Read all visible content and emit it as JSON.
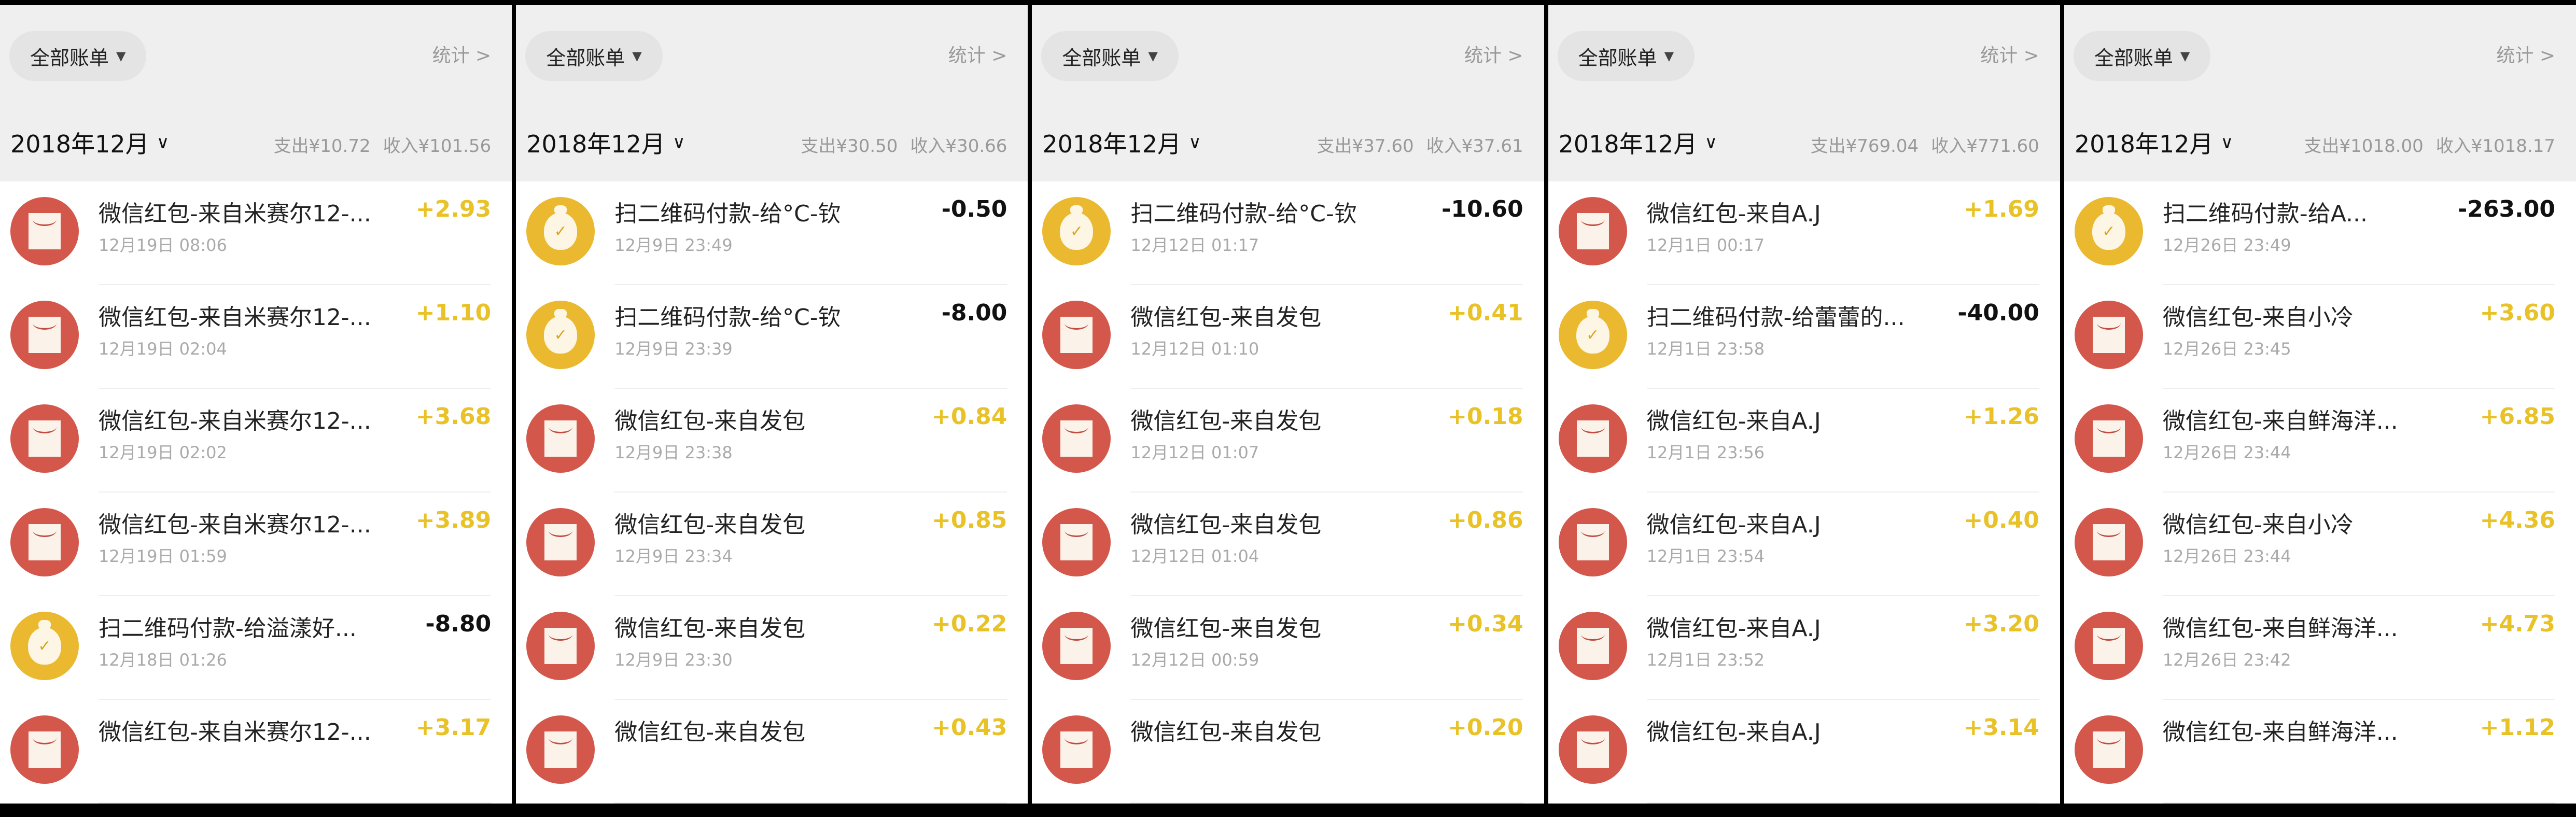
{
  "header": {
    "filter_label": "全部账单",
    "stats_label": "统计 >",
    "month_label": "2018年12月"
  },
  "colors": {
    "red_packet": "#d4574b",
    "payment": "#eab930",
    "income_amount": "#e9c227"
  },
  "panels": [
    {
      "expense": "支出¥10.72",
      "income": "收入¥101.56",
      "items": [
        {
          "type": "red",
          "title": "微信红包-来自米赛尔12-...",
          "date": "12月19日 08:06",
          "amount": "+2.93"
        },
        {
          "type": "red",
          "title": "微信红包-来自米赛尔12-...",
          "date": "12月19日 02:04",
          "amount": "+1.10"
        },
        {
          "type": "red",
          "title": "微信红包-来自米赛尔12-...",
          "date": "12月19日 02:02",
          "amount": "+3.68"
        },
        {
          "type": "red",
          "title": "微信红包-来自米赛尔12-...",
          "date": "12月19日 01:59",
          "amount": "+3.89"
        },
        {
          "type": "pay",
          "title": "扫二维码付款-给溢漾好...",
          "date": "12月18日 01:26",
          "amount": "-8.80"
        },
        {
          "type": "red",
          "title": "微信红包-来自米赛尔12-...",
          "date": "",
          "amount": "+3.17"
        }
      ]
    },
    {
      "expense": "支出¥30.50",
      "income": "收入¥30.66",
      "items": [
        {
          "type": "pay",
          "title": "扫二维码付款-给°C-钦",
          "date": "12月9日 23:49",
          "amount": "-0.50"
        },
        {
          "type": "pay",
          "title": "扫二维码付款-给°C-钦",
          "date": "12月9日 23:39",
          "amount": "-8.00"
        },
        {
          "type": "red",
          "title": "微信红包-来自发包",
          "date": "12月9日 23:38",
          "amount": "+0.84"
        },
        {
          "type": "red",
          "title": "微信红包-来自发包",
          "date": "12月9日 23:34",
          "amount": "+0.85"
        },
        {
          "type": "red",
          "title": "微信红包-来自发包",
          "date": "12月9日 23:30",
          "amount": "+0.22"
        },
        {
          "type": "red",
          "title": "微信红包-来自发包",
          "date": "",
          "amount": "+0.43"
        }
      ]
    },
    {
      "expense": "支出¥37.60",
      "income": "收入¥37.61",
      "items": [
        {
          "type": "pay",
          "title": "扫二维码付款-给°C-钦",
          "date": "12月12日 01:17",
          "amount": "-10.60"
        },
        {
          "type": "red",
          "title": "微信红包-来自发包",
          "date": "12月12日 01:10",
          "amount": "+0.41"
        },
        {
          "type": "red",
          "title": "微信红包-来自发包",
          "date": "12月12日 01:07",
          "amount": "+0.18"
        },
        {
          "type": "red",
          "title": "微信红包-来自发包",
          "date": "12月12日 01:04",
          "amount": "+0.86"
        },
        {
          "type": "red",
          "title": "微信红包-来自发包",
          "date": "12月12日 00:59",
          "amount": "+0.34"
        },
        {
          "type": "red",
          "title": "微信红包-来自发包",
          "date": "",
          "amount": "+0.20"
        }
      ]
    },
    {
      "expense": "支出¥769.04",
      "income": "收入¥771.60",
      "items": [
        {
          "type": "red",
          "title": "微信红包-来自A.J",
          "date": "12月1日 00:17",
          "amount": "+1.69"
        },
        {
          "type": "pay",
          "title": "扫二维码付款-给蕾蕾的...",
          "date": "12月1日 23:58",
          "amount": "-40.00"
        },
        {
          "type": "red",
          "title": "微信红包-来自A.J",
          "date": "12月1日 23:56",
          "amount": "+1.26"
        },
        {
          "type": "red",
          "title": "微信红包-来自A.J",
          "date": "12月1日 23:54",
          "amount": "+0.40"
        },
        {
          "type": "red",
          "title": "微信红包-来自A.J",
          "date": "12月1日 23:52",
          "amount": "+3.20"
        },
        {
          "type": "red",
          "title": "微信红包-来自A.J",
          "date": "",
          "amount": "+3.14"
        }
      ]
    },
    {
      "expense": "支出¥1018.00",
      "income": "收入¥1018.17",
      "items": [
        {
          "type": "pay",
          "title": "扫二维码付款-给A...",
          "date": "12月26日 23:49",
          "amount": "-263.00"
        },
        {
          "type": "red",
          "title": "微信红包-来自小冷",
          "date": "12月26日 23:45",
          "amount": "+3.60"
        },
        {
          "type": "red",
          "title": "微信红包-来自鲜海洋...",
          "date": "12月26日 23:44",
          "amount": "+6.85"
        },
        {
          "type": "red",
          "title": "微信红包-来自小冷",
          "date": "12月26日 23:44",
          "amount": "+4.36"
        },
        {
          "type": "red",
          "title": "微信红包-来自鲜海洋...",
          "date": "12月26日 23:42",
          "amount": "+4.73"
        },
        {
          "type": "red",
          "title": "微信红包-来自鲜海洋...",
          "date": "",
          "amount": "+1.12"
        }
      ]
    }
  ]
}
